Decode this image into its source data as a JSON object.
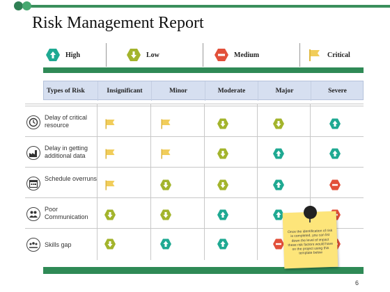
{
  "title": "Risk Management Report",
  "colors": {
    "high": "#1fa992",
    "low": "#a3b42c",
    "medium": "#e2503a",
    "critical": "#f1cd5a",
    "accent": "#2f8a56",
    "header_bg": "#d6dff0"
  },
  "legend": [
    {
      "level": "high",
      "label": "High",
      "icon": "up-arrow-hexagon-icon"
    },
    {
      "level": "low",
      "label": "Low",
      "icon": "down-arrow-hexagon-icon"
    },
    {
      "level": "medium",
      "label": "Medium",
      "icon": "minus-hexagon-icon"
    },
    {
      "level": "critical",
      "label": "Critical",
      "icon": "flag-icon"
    }
  ],
  "table": {
    "headers": [
      "Types of Risk",
      "Insignificant",
      "Minor",
      "Moderate",
      "Major",
      "Severe"
    ],
    "rows": [
      {
        "label": "Delay of critical resource",
        "icon": "clock-icon",
        "cells": [
          "critical",
          "critical",
          "low",
          "low",
          "high"
        ]
      },
      {
        "label": "Delay in getting additional data",
        "icon": "factory-icon",
        "cells": [
          "critical",
          "critical",
          "low",
          "high",
          "high"
        ]
      },
      {
        "label": "Schedule overruns",
        "icon": "calendar-icon",
        "cells": [
          "critical",
          "low",
          "low",
          "high",
          "medium"
        ]
      },
      {
        "label": "Poor Communication",
        "icon": "people-icon",
        "cells": [
          "low",
          "low",
          "high",
          "high",
          "medium"
        ]
      },
      {
        "label": "Skills gap",
        "icon": "team-icon",
        "cells": [
          "low",
          "high",
          "high",
          "medium",
          "medium"
        ]
      }
    ]
  },
  "note": {
    "text": "Once the identification of risk is completed, you can list down the level of impact these risk factors would have on the project using this template below"
  },
  "page_number": "6"
}
